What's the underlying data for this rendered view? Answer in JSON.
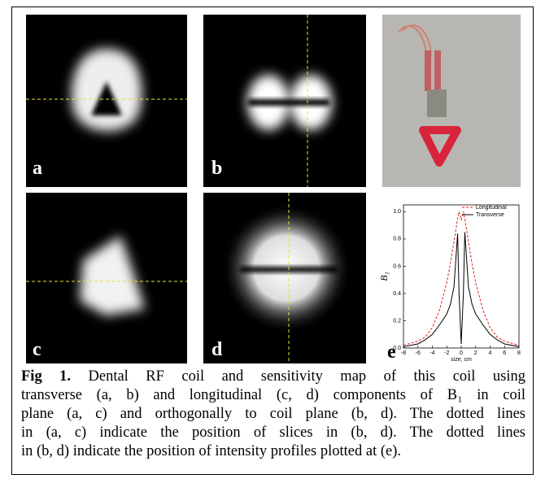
{
  "panels": [
    "a",
    "b",
    "c",
    "d",
    "e"
  ],
  "chart_data": {
    "type": "line",
    "xlabel": "size, cm",
    "ylabel": "B₁",
    "x": [
      -8,
      -6,
      -5,
      -4,
      -3,
      -2,
      -1.5,
      -1,
      -0.5,
      -0.3,
      0,
      0.3,
      0.5,
      1,
      1.5,
      2,
      3,
      4,
      5,
      6,
      8
    ],
    "series": [
      {
        "name": "Longitudinal",
        "color": "#e0201b",
        "dash": true,
        "values": [
          0.02,
          0.05,
          0.08,
          0.15,
          0.28,
          0.48,
          0.62,
          0.78,
          0.95,
          1.0,
          0.94,
          1.0,
          0.95,
          0.78,
          0.62,
          0.48,
          0.28,
          0.15,
          0.08,
          0.05,
          0.02
        ]
      },
      {
        "name": "Transverse",
        "color": "#000000",
        "dash": false,
        "values": [
          0.01,
          0.03,
          0.06,
          0.1,
          0.17,
          0.25,
          0.32,
          0.45,
          0.84,
          0.4,
          0.03,
          0.4,
          0.85,
          0.45,
          0.32,
          0.25,
          0.17,
          0.1,
          0.06,
          0.03,
          0.01
        ]
      }
    ],
    "xlim": [
      -8,
      8
    ],
    "xticks": [
      -8,
      -6,
      -4,
      -2,
      0,
      2,
      4,
      6,
      8
    ],
    "ylim": [
      0,
      1.05
    ],
    "yticks": [
      {
        "value": 0,
        "label": "0.0"
      },
      0.2,
      0.4,
      0.6,
      0.8,
      {
        "value": 1,
        "label": "1.0"
      }
    ],
    "legend": "upper right"
  },
  "caption": {
    "label": "Fig 1.",
    "lines": [
      " Dental RF coil and sensitivity map of this coil using",
      "transverse (a, b) and longitudinal (c, d) components of B₁ in coil",
      "plane (a, c) and orthogonally to coil plane (b, d). The dotted lines",
      "in (a, c) indicate the position of slices in (b, d). The dotted lines",
      "in (b, d) indicate the position of intensity profiles plotted at (e)."
    ]
  }
}
